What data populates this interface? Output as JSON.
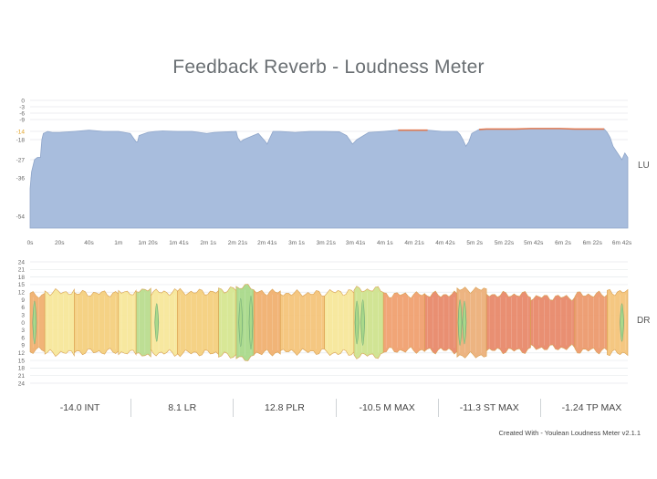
{
  "title": "Feedback Reverb - Loudness Meter",
  "colors": {
    "lu_fill": "#a8bddd",
    "lu_stroke": "#8ea5c9",
    "lu_over": "#e07a52",
    "dr_green": "#a9d98a",
    "dr_yellow": "#f7e79a",
    "dr_orange": "#f0b070",
    "dr_red": "#e8896a",
    "dr_stroke": "#d9a050",
    "grid": "#e6e9ec",
    "accent_tick": "#e0a020"
  },
  "chart_data": [
    {
      "type": "area",
      "side_label": "LU",
      "y_ticks": [
        "0",
        "-3",
        "-6",
        "-9",
        "-14",
        "-18",
        "-27",
        "-36",
        "-54"
      ],
      "y_tick_values": [
        0,
        -3,
        -6,
        -9,
        -14,
        -18,
        -27,
        -36,
        -54
      ],
      "highlight_tick": "-14",
      "ylim": [
        -60,
        0
      ],
      "x_ticks": [
        "0s",
        "20s",
        "40s",
        "1m",
        "1m 20s",
        "1m 41s",
        "2m 1s",
        "2m 21s",
        "2m 41s",
        "3m 1s",
        "3m 21s",
        "3m 41s",
        "4m 1s",
        "4m 21s",
        "4m 42s",
        "5m 2s",
        "5m 22s",
        "5m 42s",
        "6m 2s",
        "6m 22s",
        "6m 42s"
      ],
      "x_tick_seconds": [
        0,
        20,
        40,
        60,
        80,
        101,
        121,
        141,
        161,
        181,
        201,
        221,
        241,
        261,
        282,
        302,
        322,
        342,
        362,
        382,
        402
      ],
      "xlim": [
        0,
        406
      ],
      "x": [
        0,
        1,
        3,
        5,
        7,
        8,
        9,
        12,
        15,
        20,
        30,
        40,
        50,
        55,
        60,
        68,
        72,
        73,
        74,
        78,
        80,
        85,
        90,
        100,
        110,
        115,
        120,
        125,
        140,
        141,
        143,
        145,
        150,
        155,
        160,
        161,
        163,
        165,
        170,
        180,
        190,
        200,
        210,
        215,
        219,
        222,
        230,
        240,
        250,
        260,
        270,
        280,
        290,
        292,
        294,
        296,
        298,
        300,
        305,
        310,
        320,
        330,
        340,
        350,
        360,
        370,
        380,
        390,
        392,
        394,
        396,
        399,
        402,
        404,
        406
      ],
      "loudness": [
        -41,
        -33,
        -27,
        -26,
        -26,
        -18,
        -15,
        -14,
        -14.5,
        -14.5,
        -14,
        -13.5,
        -14,
        -14,
        -14,
        -15,
        -19,
        -19,
        -16,
        -15,
        -14.5,
        -14,
        -13.8,
        -14,
        -14,
        -14.5,
        -15,
        -14.5,
        -14,
        -17,
        -19,
        -18,
        -16.5,
        -15,
        -19,
        -20,
        -17,
        -14,
        -14,
        -14.5,
        -14,
        -14,
        -14.2,
        -16,
        -20,
        -18,
        -14.5,
        -14,
        -13.5,
        -13.5,
        -13.5,
        -14,
        -14,
        -15.5,
        -18,
        -21,
        -19,
        -15,
        -13.2,
        -13,
        -13,
        -13,
        -12.8,
        -12.8,
        -12.8,
        -13,
        -13,
        -13,
        -14.5,
        -17,
        -21,
        -24,
        -27,
        -24,
        -26
      ],
      "over_threshold": -14
    },
    {
      "type": "area",
      "side_label": "DR",
      "y_ticks": [
        "24",
        "21",
        "18",
        "15",
        "12",
        "9",
        "6",
        "3",
        "0",
        "3",
        "6",
        "9",
        "12",
        "15",
        "18",
        "21",
        "24"
      ],
      "y_tick_values": [
        24,
        21,
        18,
        15,
        12,
        9,
        6,
        3,
        0,
        -3,
        -6,
        -9,
        -12,
        -15,
        -18,
        -21,
        -24
      ],
      "ylim": [
        -24,
        24
      ],
      "xlim": [
        0,
        406
      ],
      "segments": [
        {
          "start": 0,
          "end": 10,
          "level": 11,
          "color": "#f0b070"
        },
        {
          "start": 10,
          "end": 30,
          "level": 12,
          "color": "#f7e79a"
        },
        {
          "start": 30,
          "end": 60,
          "level": 11.5,
          "color": "#f4d07e"
        },
        {
          "start": 60,
          "end": 72,
          "level": 12,
          "color": "#f7e79a"
        },
        {
          "start": 72,
          "end": 82,
          "level": 13,
          "color": "#b9dc8e"
        },
        {
          "start": 82,
          "end": 100,
          "level": 12,
          "color": "#f7e79a"
        },
        {
          "start": 100,
          "end": 128,
          "level": 12,
          "color": "#f4d07e"
        },
        {
          "start": 128,
          "end": 140,
          "level": 13,
          "color": "#d6e690"
        },
        {
          "start": 140,
          "end": 152,
          "level": 14,
          "color": "#a9d98a"
        },
        {
          "start": 152,
          "end": 170,
          "level": 12,
          "color": "#f0b070"
        },
        {
          "start": 170,
          "end": 200,
          "level": 11.5,
          "color": "#f4c47a"
        },
        {
          "start": 200,
          "end": 220,
          "level": 12,
          "color": "#f7e79a"
        },
        {
          "start": 220,
          "end": 240,
          "level": 13,
          "color": "#cfe38e"
        },
        {
          "start": 240,
          "end": 268,
          "level": 11,
          "color": "#f0a070"
        },
        {
          "start": 268,
          "end": 290,
          "level": 11,
          "color": "#e8896a"
        },
        {
          "start": 290,
          "end": 310,
          "level": 13,
          "color": "#ecb07a"
        },
        {
          "start": 310,
          "end": 340,
          "level": 11,
          "color": "#e8896a"
        },
        {
          "start": 340,
          "end": 370,
          "level": 10,
          "color": "#e8896a"
        },
        {
          "start": 370,
          "end": 392,
          "level": 11,
          "color": "#ec9a6e"
        },
        {
          "start": 392,
          "end": 406,
          "level": 12,
          "color": "#f4c47a"
        }
      ],
      "spikes": [
        {
          "x": 3,
          "level": 15
        },
        {
          "x": 86,
          "level": 13
        },
        {
          "x": 143,
          "level": 17
        },
        {
          "x": 150,
          "level": 19
        },
        {
          "x": 222,
          "level": 15
        },
        {
          "x": 226,
          "level": 16
        },
        {
          "x": 292,
          "level": 16
        },
        {
          "x": 295,
          "level": 15
        },
        {
          "x": 402,
          "level": 13
        }
      ]
    }
  ],
  "stats": [
    "-14.0 INT",
    "8.1 LR",
    "12.8 PLR",
    "-10.5 M MAX",
    "-11.3 ST MAX",
    "-1.24 TP MAX"
  ],
  "credit": "Created With - Youlean Loudness Meter v2.1.1"
}
